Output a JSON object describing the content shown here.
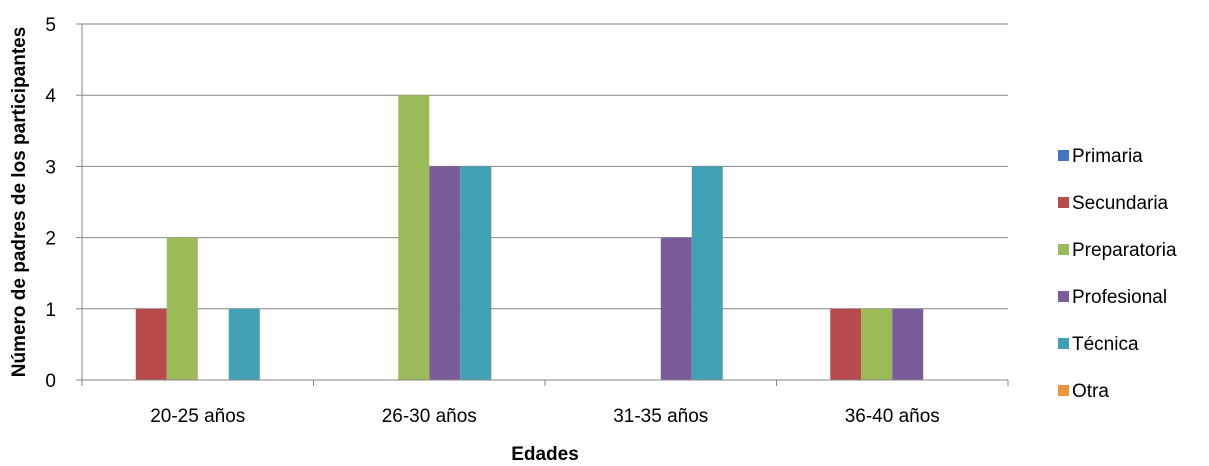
{
  "chart_data": {
    "type": "bar",
    "categories": [
      "20-25 años",
      "26-30 años",
      "31-35 años",
      "36-40 años"
    ],
    "series": [
      {
        "name": "Primaria",
        "values": [
          0,
          0,
          0,
          0
        ],
        "color": "#4472C4"
      },
      {
        "name": "Secundaria",
        "values": [
          1,
          0,
          0,
          1
        ],
        "color": "#B84B4B"
      },
      {
        "name": "Preparatoria",
        "values": [
          2,
          4,
          0,
          1
        ],
        "color": "#9BBB59"
      },
      {
        "name": "Profesional",
        "values": [
          0,
          3,
          2,
          1
        ],
        "color": "#7B5C9A"
      },
      {
        "name": "Técnica",
        "values": [
          1,
          3,
          3,
          0
        ],
        "color": "#41A0B4"
      },
      {
        "name": "Otra",
        "values": [
          0,
          0,
          0,
          0
        ],
        "color": "#F0943C"
      }
    ],
    "xlabel": "Edades",
    "ylabel": "Número de padres de los participantes",
    "ylim": [
      0,
      5
    ],
    "yticks": [
      "0",
      "1",
      "2",
      "3",
      "4",
      "5"
    ],
    "grid": true,
    "legend_position": "right"
  }
}
